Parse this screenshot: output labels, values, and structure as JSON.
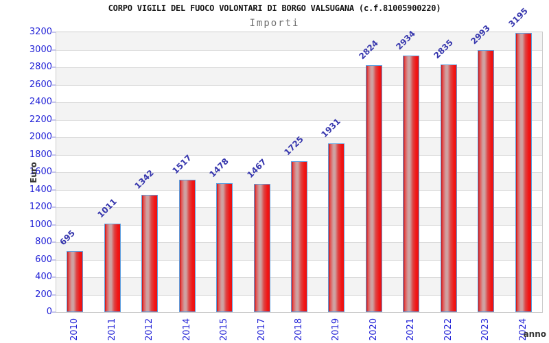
{
  "chart_data": {
    "type": "bar",
    "title": "CORPO VIGILI DEL FUOCO VOLONTARI DI BORGO VALSUGANA (c.f.81005900220)",
    "subtitle": "Importi",
    "xlabel": "anno",
    "ylabel": "Euro",
    "categories": [
      "2010",
      "2011",
      "2012",
      "2014",
      "2015",
      "2017",
      "2018",
      "2019",
      "2020",
      "2021",
      "2022",
      "2023",
      "2024"
    ],
    "values": [
      695,
      1011,
      1342,
      1517,
      1478,
      1467,
      1725,
      1931,
      2824,
      2934,
      2835,
      2993,
      3195
    ],
    "ylim": [
      0,
      3200
    ],
    "ytick_step": 200,
    "grid": true,
    "legend": "none",
    "value_label_rotation_deg": -45,
    "category_label_rotation_deg": -90,
    "colors": {
      "bar_main": "#ee1c1c",
      "bar_highlight": "#cfa0a0",
      "bar_border": "#5f9fdf",
      "tick_label": "#2323d7",
      "value_label": "#3636ad",
      "band_gray": "#f3f3f3",
      "band_white": "#ffffff",
      "gridline": "#dcdcdc",
      "plot_border": "#cccccc",
      "title": "#141414",
      "subtitle": "#6e6e6e",
      "axis_title": "#333333"
    }
  }
}
